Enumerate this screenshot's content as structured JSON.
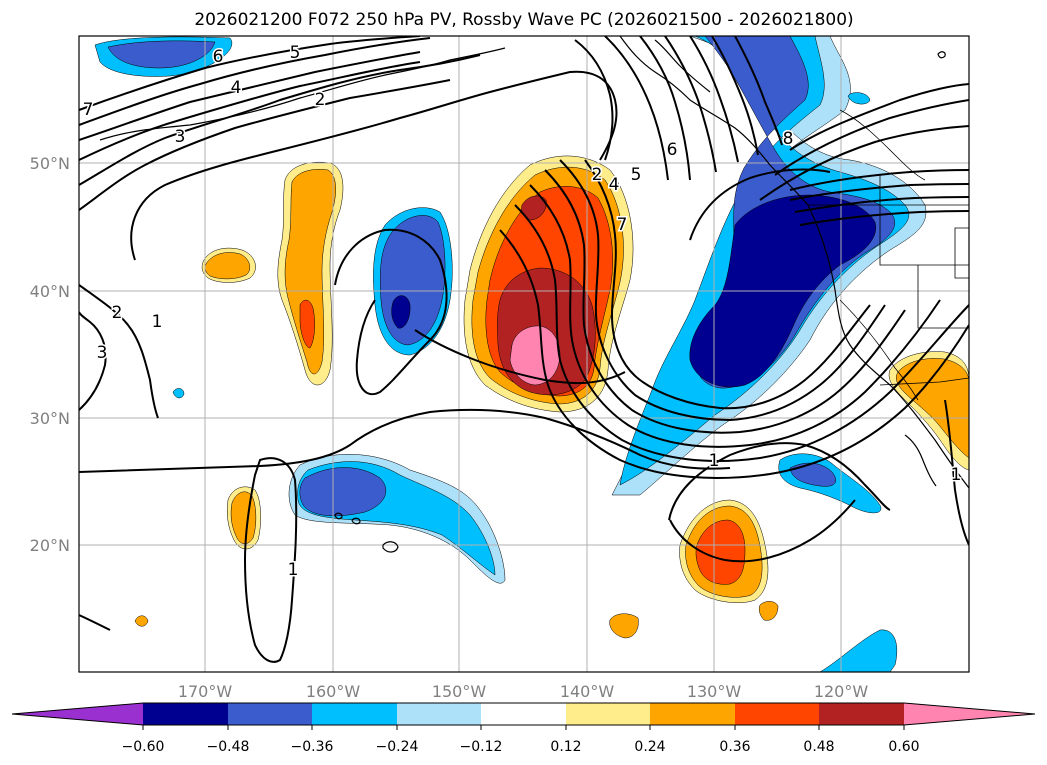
{
  "title": "2026021200 F072 250 hPa PV, Rossby Wave PC (2026021500 - 2026021800)",
  "colors": {
    "neg_060": "#9B30D0",
    "neg_048": "#000090",
    "neg_036": "#3A5CCC",
    "neg_024": "#00BFFF",
    "neg_012": "#ADE1FA",
    "zero": "#ffffff",
    "pos_012": "#FFEC8B",
    "pos_024": "#FFA500",
    "pos_036": "#FF4500",
    "pos_048": "#B22222",
    "pos_060": "#FF85B0"
  },
  "lat_labels": [
    "50°N",
    "40°N",
    "30°N",
    "20°N"
  ],
  "lon_labels": [
    "170°W",
    "160°W",
    "150°W",
    "140°W",
    "130°W",
    "120°W"
  ],
  "colorbar": {
    "tick_labels": [
      "−0.60",
      "−0.48",
      "−0.36",
      "−0.24",
      "−0.12",
      "0.12",
      "0.24",
      "0.36",
      "0.48",
      "0.60"
    ]
  },
  "contour_labels": [
    "6",
    "5",
    "4",
    "3",
    "2",
    "7",
    "2",
    "1",
    "3",
    "2",
    "4",
    "5",
    "6",
    "7",
    "8",
    "1",
    "1",
    "1"
  ]
}
